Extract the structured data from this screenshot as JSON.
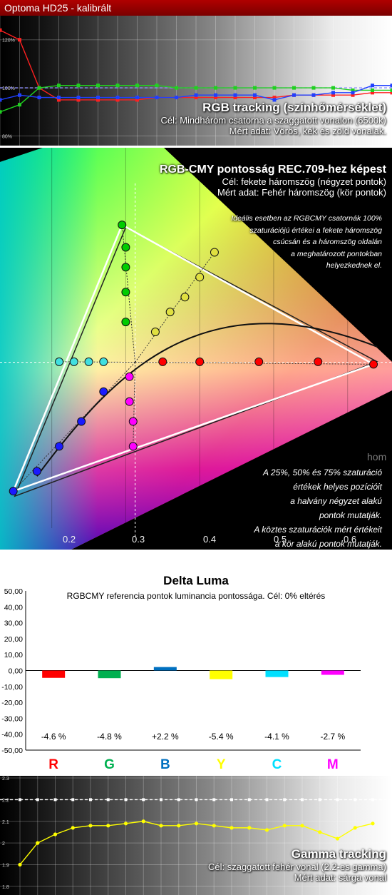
{
  "window": {
    "title": "Optoma HD25 - kalibrált"
  },
  "rgb_tracking": {
    "title": "RGB tracking (színhőmérséklet)",
    "target": "Cél: Mindhárom csatorna a szaggatott vonalon (6500k)",
    "measured": "Mért adat: Vörös, kék és zöld vonalak.",
    "y_ticks": [
      "120%",
      "100%",
      "80%"
    ]
  },
  "gamut": {
    "title": "RGB-CMY pontosság REC.709-hez képest",
    "target": "Cél: fekete háromszög (négyzet pontok)",
    "measured": "Mért adat: Fehér háromszög (kör pontok)",
    "note_top": [
      "Ideális esetben az RGBCMY csatornák 100%",
      "szaturációjú értékei a fekete háromszög",
      "csúcsán  és a háromszög oldalán",
      "a meghatározott pontokban",
      "helyezkednek el."
    ],
    "note_bottom": [
      "A 25%, 50% és 75% szaturáció",
      "értékek helyes pozícióit",
      "a halvány négyzet alakú",
      "pontok mutatják.",
      "A köztes szaturációk mért értékeit",
      "a kör alakú pontok mutatják."
    ],
    "x_ticks": [
      "0.2",
      "0.3",
      "0.4",
      "0.5",
      "0.6"
    ],
    "watermark": "hom"
  },
  "delta_luma": {
    "title": "Delta Luma",
    "subtitle": "RGBCMY referencia pontok luminancia pontossága. Cél: 0% eltérés",
    "y_ticks": [
      "50,00",
      "40,00",
      "30,00",
      "20,00",
      "10,00",
      "0,00",
      "-10,00",
      "-20,00",
      "-30,00",
      "-40,00",
      "-50,00"
    ],
    "value_labels": [
      "-4.6 %",
      "-4.8 %",
      "+2.2 %",
      "-5.4 %",
      "-4.1 %",
      "-2.7 %"
    ],
    "letters": [
      "R",
      "G",
      "B",
      "Y",
      "C",
      "M"
    ]
  },
  "gamma_tracking": {
    "title": "Gamma tracking",
    "target": "Cél: szaggatott fehér vonal (2.2-es gamma)",
    "measured": "Mért adat: sárga vonal",
    "y_ticks": [
      "2.3",
      "2.2",
      "2.1",
      "2",
      "1.9",
      "1.8"
    ]
  },
  "colors": {
    "red": "#ff0000",
    "green": "#00b050",
    "blue": "#0070c0",
    "yellow": "#ffff00",
    "cyan": "#00e0ff",
    "magenta": "#ff00ff"
  },
  "chart_data": [
    {
      "type": "line",
      "title": "RGB tracking (színhőmérséklet)",
      "x": [
        0,
        5,
        10,
        15,
        20,
        25,
        30,
        35,
        40,
        45,
        50,
        55,
        60,
        65,
        70,
        75,
        80,
        85,
        90,
        95,
        100
      ],
      "ylim": [
        76,
        130
      ],
      "series": [
        {
          "name": "Red",
          "color": "#ff2020",
          "values": [
            124,
            120,
            100,
            95,
            95,
            95,
            95,
            95,
            96,
            96,
            96,
            96,
            96,
            96,
            96,
            97,
            97,
            97,
            97,
            98,
            98
          ]
        },
        {
          "name": "Green",
          "color": "#20d020",
          "values": [
            90,
            93,
            100,
            101,
            101,
            101,
            101,
            101,
            101,
            100,
            100,
            100,
            100,
            100,
            100,
            100,
            100,
            100,
            99,
            99,
            99
          ]
        },
        {
          "name": "Blue",
          "color": "#2040ff",
          "values": [
            95,
            97,
            96,
            96,
            96,
            96,
            96,
            96,
            96,
            96,
            97,
            97,
            97,
            97,
            95,
            97,
            97,
            98,
            98,
            101,
            101
          ]
        }
      ],
      "target": 100
    },
    {
      "type": "scatter",
      "title": "RGB-CMY pontosság REC.709-hez képest",
      "xlim": [
        0.13,
        0.66
      ],
      "ylim": [
        0.0,
        0.76
      ],
      "reference_triangle": [
        [
          0.64,
          0.33
        ],
        [
          0.3,
          0.6
        ],
        [
          0.15,
          0.06
        ]
      ],
      "measured_triangle": [
        [
          0.635,
          0.325
        ],
        [
          0.295,
          0.605
        ],
        [
          0.148,
          0.07
        ]
      ],
      "white_point": [
        0.3127,
        0.329
      ],
      "measured_points": [
        {
          "color": "red",
          "x": [
            0.35,
            0.4,
            0.48,
            0.56,
            0.635
          ],
          "y": [
            0.33,
            0.33,
            0.33,
            0.33,
            0.325
          ]
        },
        {
          "color": "green",
          "x": [
            0.3,
            0.3,
            0.3,
            0.3,
            0.295
          ],
          "y": [
            0.41,
            0.47,
            0.52,
            0.56,
            0.605
          ]
        },
        {
          "color": "blue",
          "x": [
            0.27,
            0.24,
            0.21,
            0.18,
            0.148
          ],
          "y": [
            0.27,
            0.21,
            0.16,
            0.11,
            0.07
          ]
        },
        {
          "color": "yellow",
          "x": [
            0.34,
            0.36,
            0.38,
            0.4,
            0.42
          ],
          "y": [
            0.39,
            0.43,
            0.46,
            0.5,
            0.55
          ]
        },
        {
          "color": "cyan",
          "x": [
            0.27,
            0.25,
            0.23,
            0.21
          ],
          "y": [
            0.33,
            0.33,
            0.33,
            0.33
          ]
        },
        {
          "color": "magenta",
          "x": [
            0.305,
            0.305,
            0.31,
            0.31
          ],
          "y": [
            0.3,
            0.25,
            0.21,
            0.16
          ]
        }
      ]
    },
    {
      "type": "bar",
      "title": "Delta Luma",
      "categories": [
        "R",
        "G",
        "B",
        "Y",
        "C",
        "M"
      ],
      "values": [
        -4.6,
        -4.8,
        2.2,
        -5.4,
        -4.1,
        -2.7
      ],
      "ylim": [
        -50,
        50
      ]
    },
    {
      "type": "line",
      "title": "Gamma tracking",
      "x": [
        0,
        5,
        10,
        15,
        20,
        25,
        30,
        35,
        40,
        45,
        50,
        55,
        60,
        65,
        70,
        75,
        80,
        85,
        90,
        95,
        100
      ],
      "ylim": [
        1.76,
        2.31
      ],
      "series": [
        {
          "name": "Gamma",
          "color": "#ffff00",
          "values": [
            1.9,
            2.0,
            2.04,
            2.07,
            2.08,
            2.08,
            2.09,
            2.1,
            2.08,
            2.08,
            2.09,
            2.08,
            2.07,
            2.07,
            2.06,
            2.08,
            2.08,
            2.05,
            2.02,
            2.07,
            2.09
          ]
        }
      ],
      "target": 2.2
    }
  ]
}
